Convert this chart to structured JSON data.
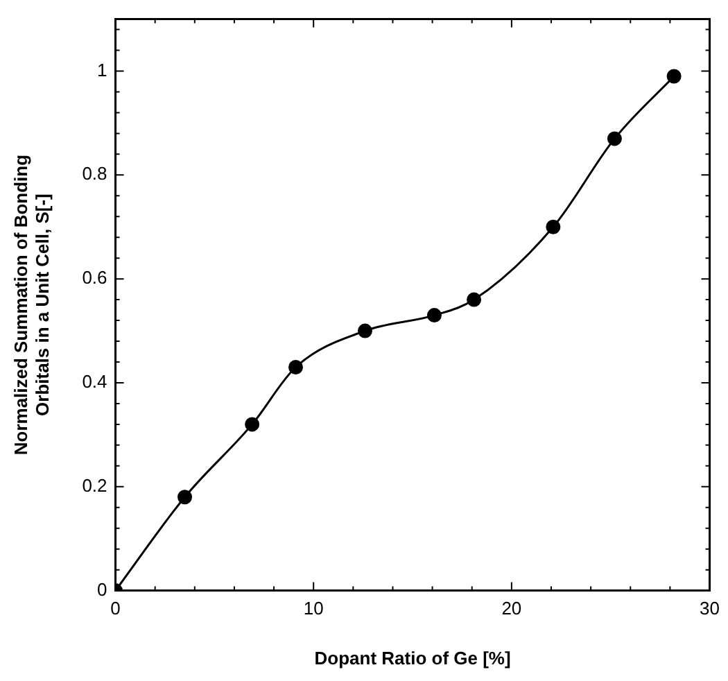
{
  "chart_data": {
    "type": "line",
    "xlabel": "Dopant Ratio of Ge [%]",
    "ylabel": "Normalized Summation of Bonding\nOrbitals in a Unit Cell, S[-]",
    "x": [
      0,
      3.5,
      6.9,
      9.1,
      12.6,
      16.1,
      18.1,
      22.1,
      25.2,
      28.2
    ],
    "series": [
      {
        "color": "#000000",
        "values": [
          0,
          0.18,
          0.32,
          0.43,
          0.5,
          0.53,
          0.56,
          0.7,
          0.87,
          0.99
        ]
      }
    ],
    "xlim": [
      0,
      30
    ],
    "xticks": [
      0,
      10,
      20,
      30
    ],
    "ylim": [
      0,
      1.1
    ],
    "yticks": [
      0,
      0.2,
      0.4,
      0.6,
      0.8,
      1
    ],
    "marker": "circle",
    "line_style": "solid",
    "legend": false,
    "grid": false
  }
}
